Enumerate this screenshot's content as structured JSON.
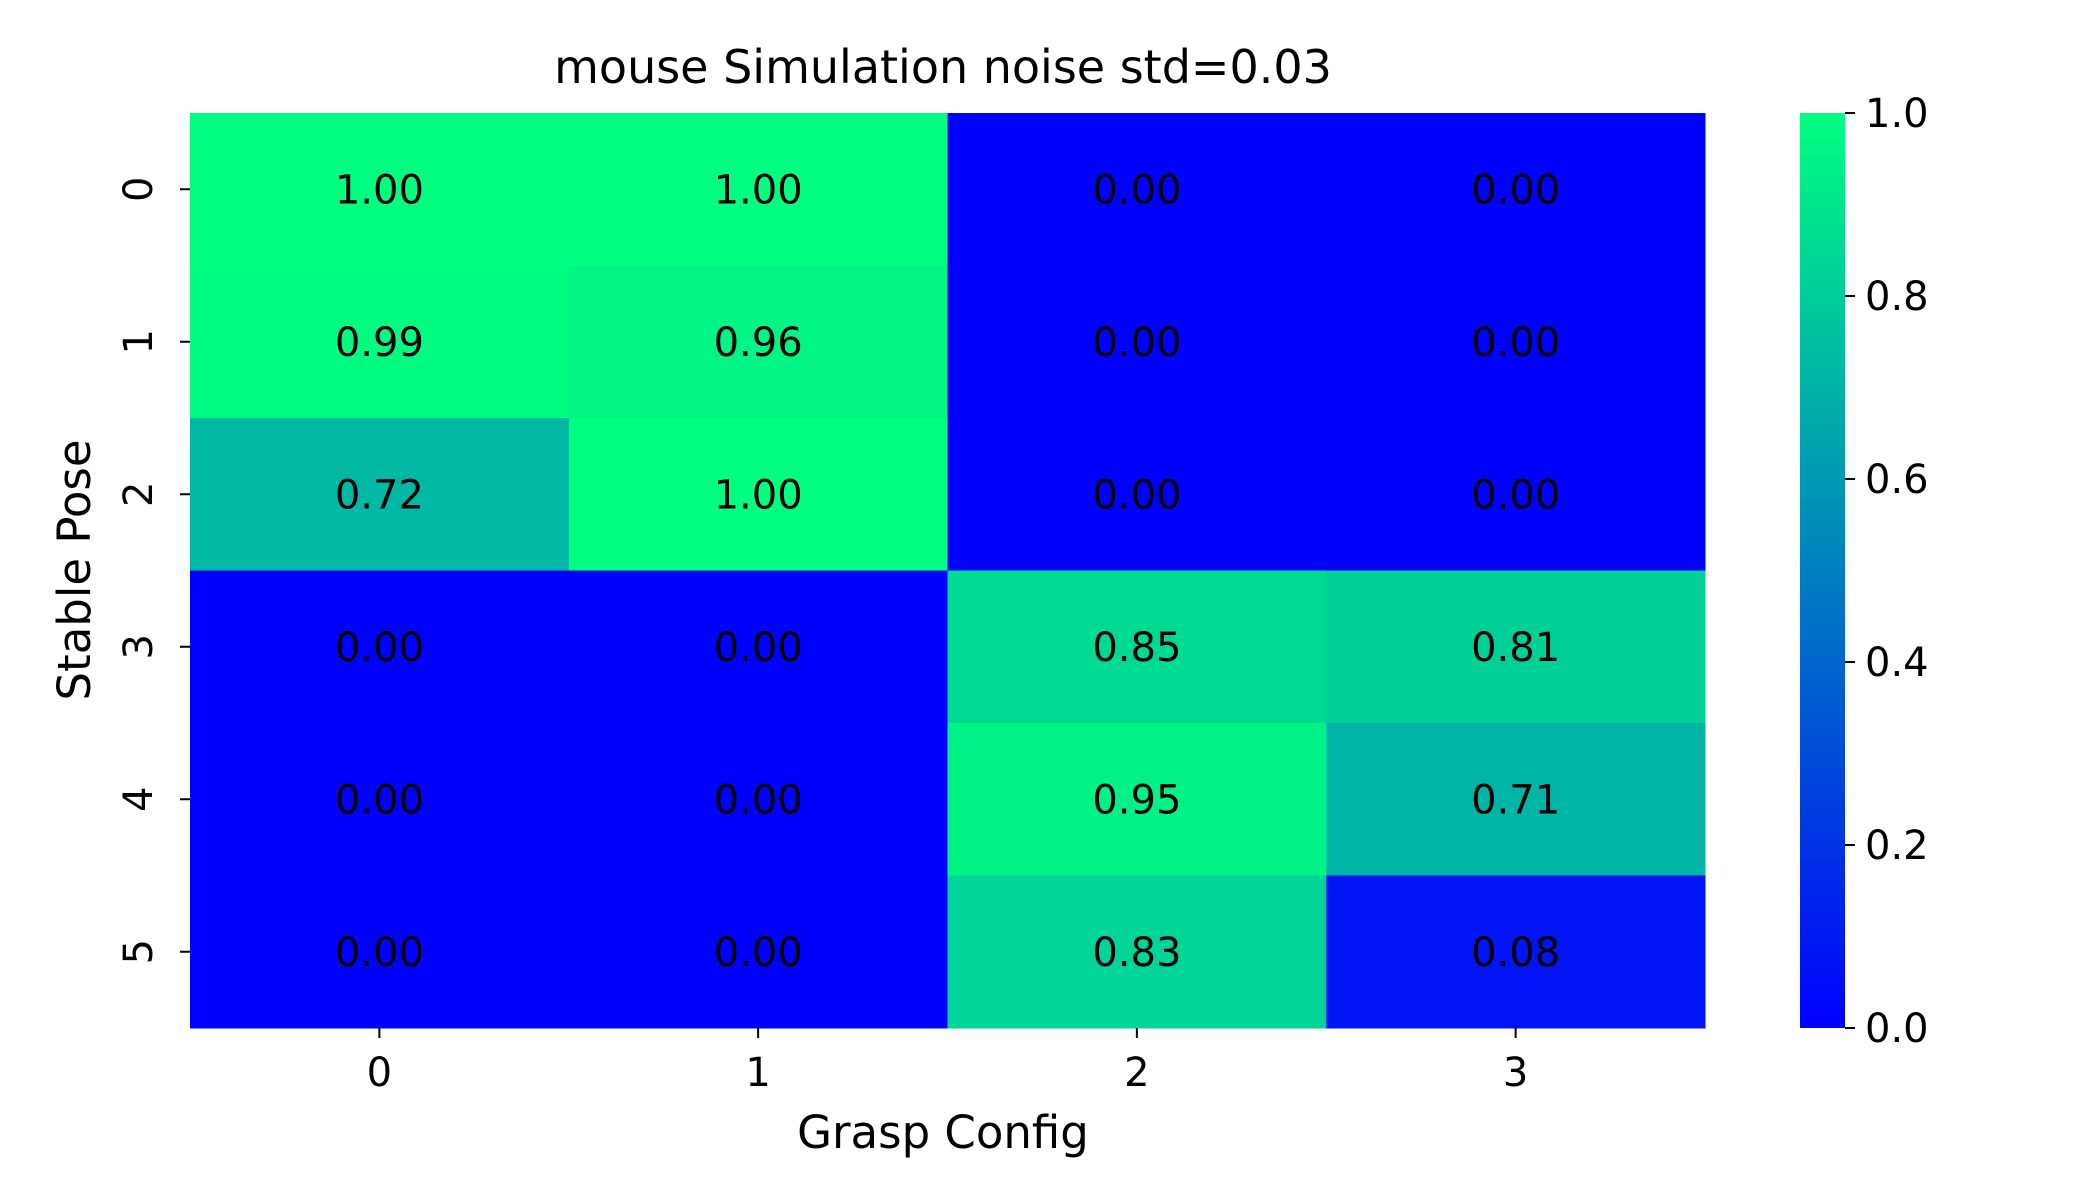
{
  "chart_data": {
    "type": "heatmap",
    "title": "mouse Simulation noise std=0.03",
    "xlabel": "Grasp Config",
    "ylabel": "Stable Pose",
    "x_categories": [
      "0",
      "1",
      "2",
      "3"
    ],
    "y_categories": [
      "0",
      "1",
      "2",
      "3",
      "4",
      "5"
    ],
    "values": [
      [
        1.0,
        1.0,
        0.0,
        0.0
      ],
      [
        0.99,
        0.96,
        0.0,
        0.0
      ],
      [
        0.72,
        1.0,
        0.0,
        0.0
      ],
      [
        0.0,
        0.0,
        0.85,
        0.81
      ],
      [
        0.0,
        0.0,
        0.95,
        0.71
      ],
      [
        0.0,
        0.0,
        0.83,
        0.08
      ]
    ],
    "value_format": "0.00",
    "colormap": "winter",
    "colormap_low": "#0000ff",
    "colormap_high": "#00ff80",
    "colorbar": {
      "range": [
        0.0,
        1.0
      ],
      "ticks": [
        0.0,
        0.2,
        0.4,
        0.6,
        0.8,
        1.0
      ],
      "tick_labels": [
        "0.0",
        "0.2",
        "0.4",
        "0.6",
        "0.8",
        "1.0"
      ],
      "placement": "right"
    }
  }
}
